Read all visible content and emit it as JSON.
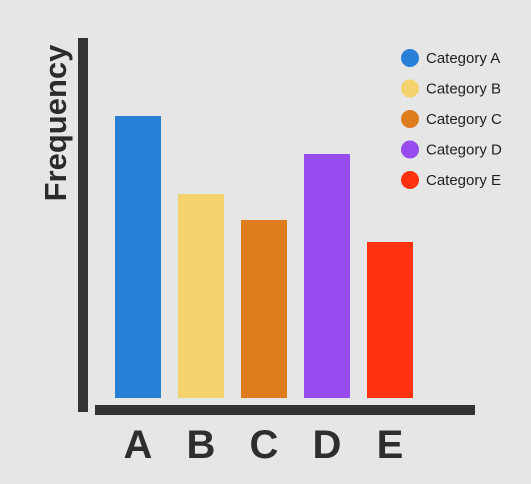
{
  "chart_data": {
    "type": "bar",
    "title": "",
    "xlabel": "",
    "ylabel": "Frequency",
    "categories": [
      "A",
      "B",
      "C",
      "D",
      "E"
    ],
    "values": [
      282,
      204,
      178,
      244,
      156
    ],
    "ylim": [
      0,
      360
    ],
    "grid": false,
    "legend_position": "top-right",
    "legend": [
      {
        "label": "Category A",
        "color": "#2780d6"
      },
      {
        "label": "Category B",
        "color": "#f4d36f"
      },
      {
        "label": "Category C",
        "color": "#de7c1e"
      },
      {
        "label": "Category D",
        "color": "#964cef"
      },
      {
        "label": "Category E",
        "color": "#ff3210"
      }
    ],
    "colors": [
      "#2780d6",
      "#f4d36f",
      "#de7c1e",
      "#964cef",
      "#ff3210"
    ]
  }
}
